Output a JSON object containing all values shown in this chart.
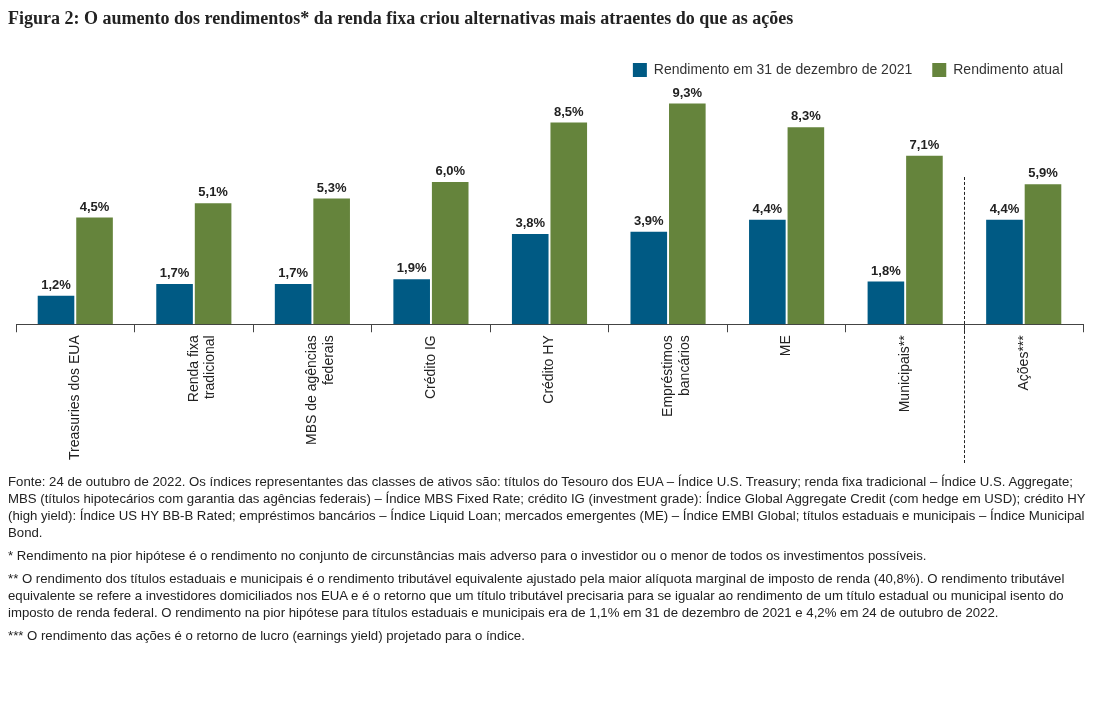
{
  "chart_data": {
    "type": "bar",
    "title": "Figura 2: O aumento dos rendimentos* da renda fixa criou alternativas mais atraentes do que as ações",
    "categories": [
      "Treasuries dos EUA",
      "Renda fixa\ntradicional",
      "MBS de agências\nfederais",
      "Crédito IG",
      "Crédito HY",
      "Empréstimos\nbancários",
      "ME",
      "Municipais**",
      "Ações***"
    ],
    "series": [
      {
        "name": "Rendimento em 31 de dezembro de 2021",
        "color": "#005a84",
        "values": [
          1.2,
          1.7,
          1.7,
          1.9,
          3.8,
          3.9,
          4.4,
          1.8,
          4.4
        ],
        "value_labels": [
          "1,2%",
          "1,7%",
          "1,7%",
          "1,9%",
          "3,8%",
          "3,9%",
          "4,4%",
          "1,8%",
          "4,4%"
        ]
      },
      {
        "name": "Rendimento atual",
        "color": "#65843c",
        "values": [
          4.5,
          5.1,
          5.3,
          6.0,
          8.5,
          9.3,
          8.3,
          7.1,
          5.9
        ],
        "value_labels": [
          "4,5%",
          "5,1%",
          "5,3%",
          "6,0%",
          "8,5%",
          "9,3%",
          "8,3%",
          "7,1%",
          "5,9%"
        ]
      }
    ],
    "legend": "top right",
    "grid": false,
    "annotations": [
      "Fonte: 24 de outubro de 2022. Os índices representantes das classes de ativos são: títulos do Tesouro dos EUA – Índice U.S. Treasury; renda fixa tradicional – Índice U.S. Aggregate; MBS (títulos hipotecários com garantia das agências federais) – Índice MBS Fixed Rate; crédito IG (investment grade): Índice Global Aggregate Credit (com hedge em USD); crédito HY (high yield): Índice US HY BB-B Rated; empréstimos bancários – Índice Liquid Loan; mercados emergentes (ME) – Índice EMBI Global; títulos estaduais e municipais – Índice Municipal Bond.",
      "* Rendimento na pior hipótese é o rendimento no conjunto de circunstâncias mais adverso para o investidor ou o menor de todos os investimentos possíveis.",
      "** O rendimento dos títulos estaduais e municipais é o rendimento tributável equivalente ajustado pela maior alíquota marginal de imposto de renda (40,8%). O rendimento tributável equivalente se refere a investidores domiciliados nos EUA e é o retorno que um título tributável precisaria para se igualar ao rendimento de um título estadual ou municipal isento do imposto de renda federal. O rendimento na pior hipótese para títulos estaduais e municipais era de 1,1% em 31 de dezembro de 2021 e 4,2% em 24 de outubro de 2022.",
      "*** O rendimento das ações é o retorno de lucro (earnings yield) projetado para o índice."
    ]
  }
}
